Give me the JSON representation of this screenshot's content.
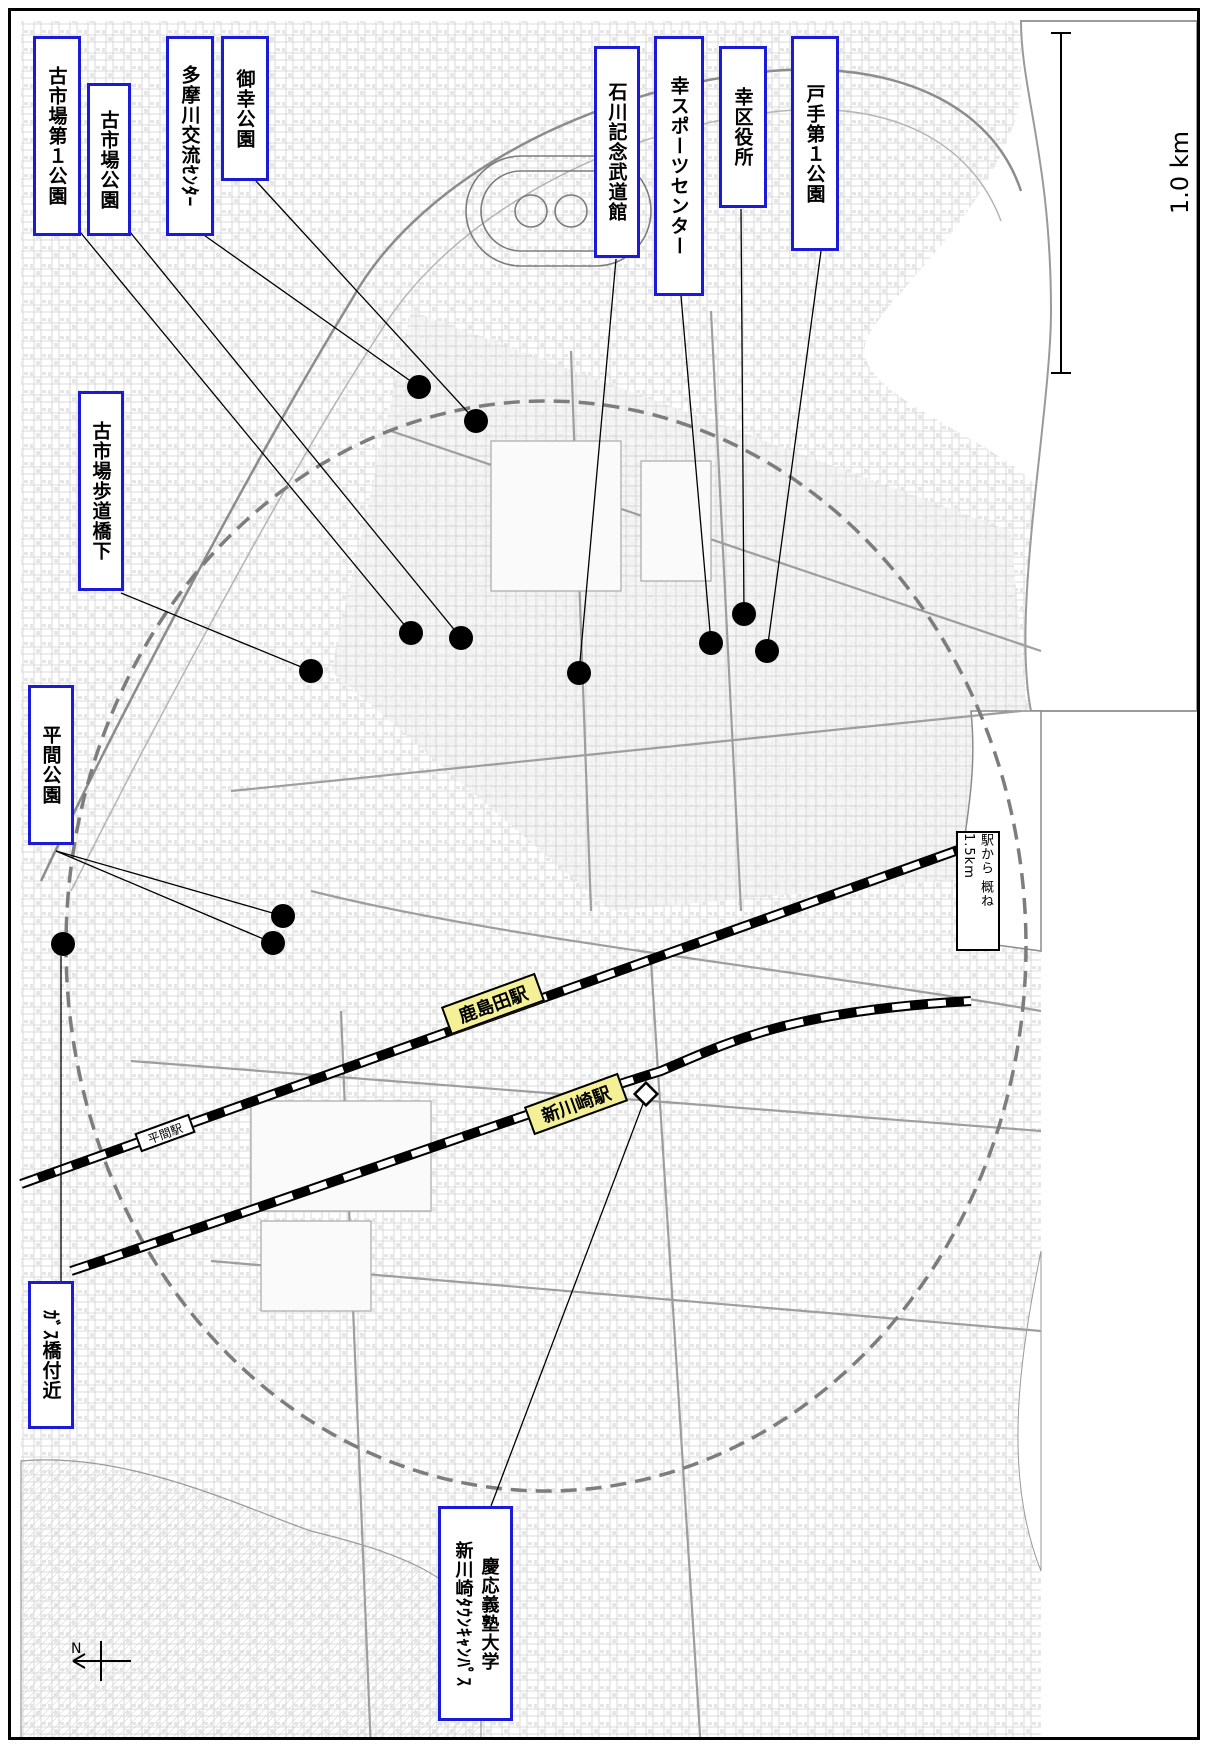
{
  "map": {
    "border_color": "#000000",
    "label_border_color": "#1a1ad8",
    "station_fill": "#f4f097",
    "radius_label": "駅から 概ね1.5km",
    "scale_label": "1.0 km",
    "north_label": "N"
  },
  "places": [
    {
      "id": "furuichiba-1-park",
      "name": "古市場第１公園"
    },
    {
      "id": "furuichiba-park",
      "name": "古市場公園"
    },
    {
      "id": "tamagawa-center",
      "name": "多摩川交流ｾﾝﾀｰ"
    },
    {
      "id": "misaiwai-park",
      "name": "御幸公園"
    },
    {
      "id": "furuichiba-footbridge",
      "name": "古市場歩道橋下"
    },
    {
      "id": "hirama-park",
      "name": "平間公園"
    },
    {
      "id": "gas-bridge",
      "name": "ｶﾞｽ橋付近"
    },
    {
      "id": "ishikawa-budokan",
      "name": "石川記念武道館"
    },
    {
      "id": "saiwai-sports-center",
      "name": "幸スポーツセンター"
    },
    {
      "id": "saiwai-ward-office",
      "name": "幸区役所"
    },
    {
      "id": "tode-1-park",
      "name": "戸手第１公園"
    }
  ],
  "campus": {
    "line1": "慶応義塾大学",
    "line2": "新川崎ﾀｳﾝｷｬﾝﾊﾟｽ"
  },
  "stations": {
    "kashimada": "鹿島田駅",
    "shinkawasaki": "新川崎駅",
    "hirama": "平間駅"
  }
}
